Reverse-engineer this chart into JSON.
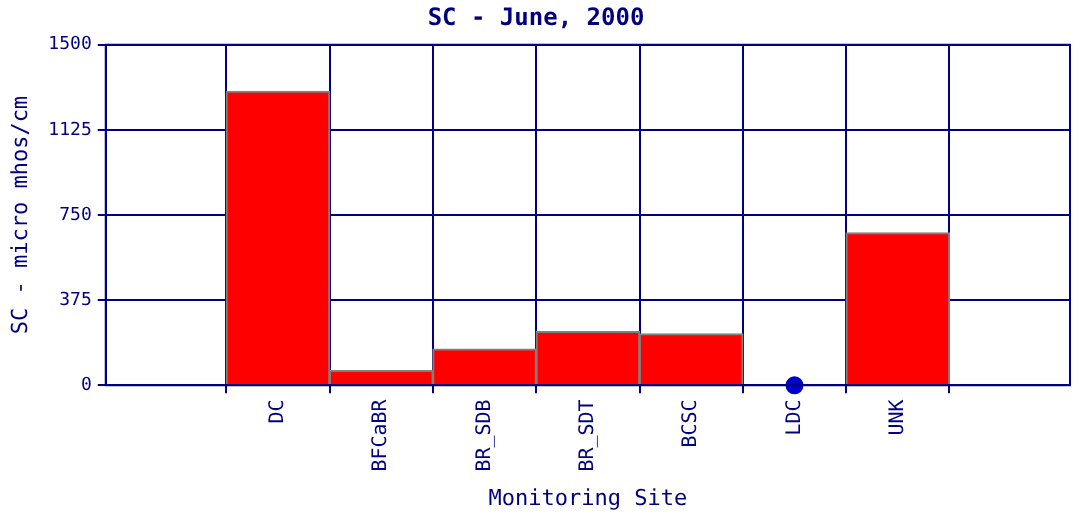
{
  "chart_data": {
    "type": "bar",
    "title": "SC - June, 2000",
    "xlabel": "Monitoring Site",
    "ylabel": "SC - micro mhos/cm",
    "categories": [
      "DC",
      "BFCaBR",
      "BR_SDB",
      "BR_SDT",
      "BCSC",
      "LDC",
      "UNK"
    ],
    "series": [
      {
        "color": "#ff0000",
        "values": [
          1295,
          65,
          159,
          236,
          227,
          null,
          672
        ]
      },
      {
        "type": "scatter",
        "color": "#0000cc",
        "x": [
          "LDC"
        ],
        "values": [
          0
        ],
        "marker": "circle"
      }
    ],
    "ylim": [
      0,
      1500
    ],
    "yticks": [
      0,
      375,
      750,
      1125,
      1500
    ],
    "grid": true,
    "legend": false
  }
}
